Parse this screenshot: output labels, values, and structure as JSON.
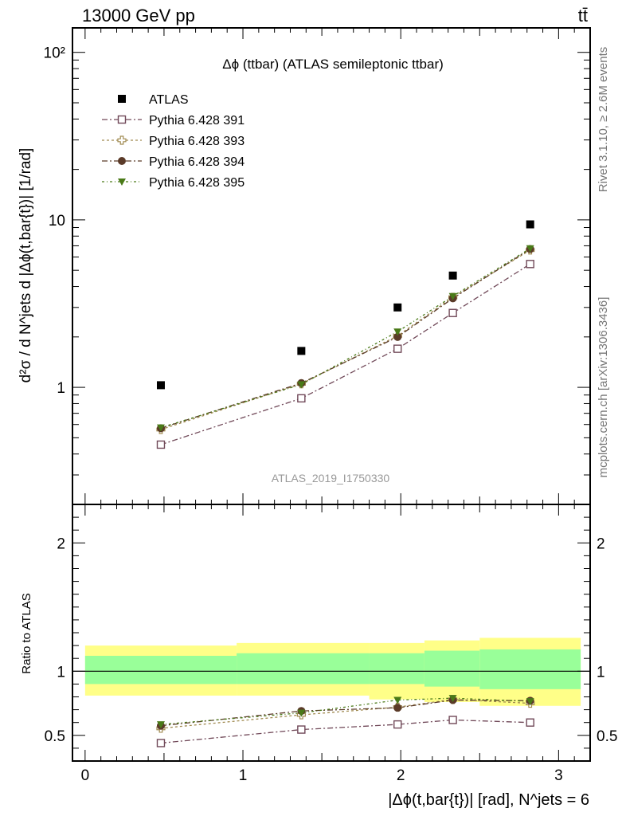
{
  "header": {
    "left": "13000 GeV pp",
    "right": "tt̄"
  },
  "side_labels": {
    "rivet": "Rivet 3.1.10, ≥ 2.6M events",
    "mcplots": "mcplots.cern.ch [arXiv:1306.3436]"
  },
  "chart_data": {
    "type": "scatter",
    "title": "Δϕ (ttbar) (ATLAS semileptonic ttbar)",
    "watermark": "ATLAS_2019_I1750330",
    "ylabel_main": "d²σ / d N^jets d |Δϕ(t,bar{t})| [1/rad]",
    "ylabel_ratio": "Ratio to ATLAS",
    "xlabel": "|Δϕ(t,bar{t})| [rad], N^jets = 6",
    "y_scale_main": "log",
    "xlim": [
      -0.08,
      3.2
    ],
    "ylim_main": [
      0.2,
      140
    ],
    "ylim_ratio": [
      0.3,
      2.3
    ],
    "x_ticks": [
      {
        "value": 0,
        "label": "0"
      },
      {
        "value": 1,
        "label": "1"
      },
      {
        "value": 2,
        "label": "2"
      },
      {
        "value": 3,
        "label": "3"
      }
    ],
    "y_ticks_main": [
      {
        "value": 1,
        "label": "1"
      },
      {
        "value": 10,
        "label": "10"
      },
      {
        "value": 100,
        "label": "10²"
      }
    ],
    "y_ticks_ratio": [
      {
        "value": 0.5,
        "label": "0.5"
      },
      {
        "value": 1,
        "label": "1"
      },
      {
        "value": 2,
        "label": "2"
      }
    ],
    "bins": [
      {
        "x": 0.48,
        "lo": 0.0,
        "hi": 0.96
      },
      {
        "x": 1.37,
        "lo": 0.96,
        "hi": 1.8
      },
      {
        "x": 1.98,
        "lo": 1.8,
        "hi": 2.15
      },
      {
        "x": 2.33,
        "lo": 2.15,
        "hi": 2.5
      },
      {
        "x": 2.82,
        "lo": 2.5,
        "hi": 3.14
      }
    ],
    "data": {
      "name": "ATLAS",
      "color": "#000000",
      "values": [
        1.03,
        1.65,
        3.0,
        4.65,
        9.4
      ]
    },
    "bands": {
      "stat_color": "#99ff99",
      "total_color": "#ffff88",
      "stat": [
        [
          0.9,
          1.12
        ],
        [
          0.9,
          1.14
        ],
        [
          0.9,
          1.14
        ],
        [
          0.88,
          1.16
        ],
        [
          0.86,
          1.17
        ]
      ],
      "total": [
        [
          0.81,
          1.2
        ],
        [
          0.81,
          1.22
        ],
        [
          0.78,
          1.22
        ],
        [
          0.76,
          1.24
        ],
        [
          0.73,
          1.26
        ]
      ]
    },
    "series": [
      {
        "name": "Pythia 6.428 391",
        "color": "#704858",
        "marker": "open-square",
        "values": [
          0.455,
          0.86,
          1.7,
          2.78,
          5.45
        ],
        "ratio": [
          0.44,
          0.545,
          0.585,
          0.62,
          0.6
        ]
      },
      {
        "name": "Pythia 6.428 393",
        "color": "#a08a50",
        "marker": "open-cross",
        "values": [
          0.56,
          1.05,
          2.03,
          3.45,
          6.6
        ],
        "ratio": [
          0.555,
          0.66,
          0.72,
          0.78,
          0.75
        ]
      },
      {
        "name": "Pythia 6.428 394",
        "color": "#5a3a28",
        "marker": "filled-circle",
        "values": [
          0.57,
          1.06,
          2.0,
          3.4,
          6.7
        ],
        "ratio": [
          0.575,
          0.69,
          0.715,
          0.775,
          0.77
        ]
      },
      {
        "name": "Pythia 6.428 395",
        "color": "#4a7a18",
        "marker": "filled-triangle-down",
        "values": [
          0.575,
          1.04,
          2.15,
          3.5,
          6.75
        ],
        "ratio": [
          0.585,
          0.675,
          0.775,
          0.79,
          0.765
        ]
      }
    ]
  }
}
